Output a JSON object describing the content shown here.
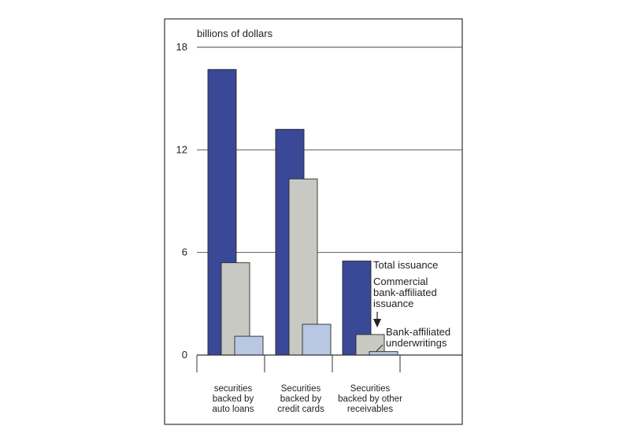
{
  "chart_data": {
    "type": "bar",
    "title": "",
    "ylabel": "billions of dollars",
    "xlabel": "",
    "ylim": [
      0,
      18
    ],
    "yticks": [
      0,
      6,
      12,
      18
    ],
    "grid": true,
    "legend_placement": "annotations beside third group",
    "categories": [
      [
        "securities",
        "backed by",
        "auto loans"
      ],
      [
        "Securities",
        "backed by",
        "credit cards"
      ],
      [
        "Securities",
        "backed by other",
        "receivables"
      ]
    ],
    "series": [
      {
        "name": "Total issuance",
        "color": "#3a4898",
        "values": [
          16.7,
          13.2,
          5.5
        ]
      },
      {
        "name": "Commercial bank-affiliated issuance",
        "color": "#c9c9c4",
        "values": [
          5.4,
          10.3,
          1.2
        ]
      },
      {
        "name": "Bank-affiliated underwritings",
        "color": "#b8c8e2",
        "values": [
          1.1,
          1.8,
          0.2
        ]
      }
    ],
    "annotations": {
      "total": "Total issuance",
      "commercial": [
        "Commercial",
        "bank-affiliated",
        "issuance"
      ],
      "underwritings": [
        "Bank-affiliated",
        "underwritings"
      ]
    }
  }
}
